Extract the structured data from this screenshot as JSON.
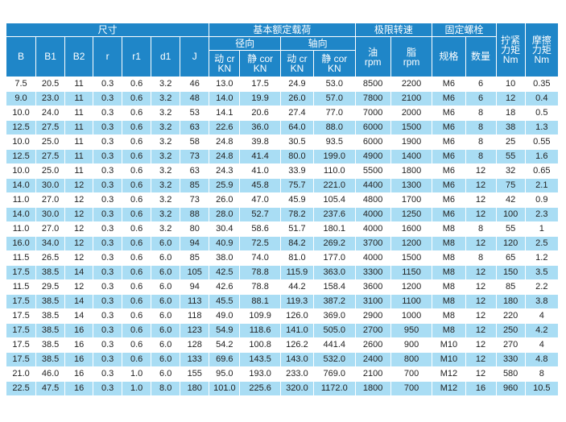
{
  "headers": {
    "dimensions_group": "尺寸",
    "load_group": "基本额定载荷",
    "speed_group": "极限转速",
    "bolt_group": "固定螺栓",
    "torque": [
      "拧紧",
      "力矩",
      "Nm"
    ],
    "friction": [
      "摩擦",
      "力矩",
      "Nm"
    ],
    "radial": "径向",
    "axial": "轴向",
    "dims": [
      "B",
      "B1",
      "B2",
      "r",
      "r1",
      "d1",
      "J"
    ],
    "radial_dynamic": [
      "动 cr",
      "KN"
    ],
    "radial_static": [
      "静 cor",
      "KN"
    ],
    "axial_dynamic": [
      "动 cr",
      "KN"
    ],
    "axial_static": [
      "静 cor",
      "KN"
    ],
    "oil": [
      "油",
      "rpm"
    ],
    "grease": [
      "脂",
      "rpm"
    ],
    "spec": "规格",
    "qty": "数量"
  },
  "rows": [
    [
      "7.5",
      "20.5",
      "11",
      "0.3",
      "0.6",
      "3.2",
      "46",
      "13.0",
      "17.5",
      "24.9",
      "53.0",
      "8500",
      "2200",
      "M6",
      "6",
      "10",
      "0.35"
    ],
    [
      "9.0",
      "23.0",
      "11",
      "0.3",
      "0.6",
      "3.2",
      "48",
      "14.0",
      "19.9",
      "26.0",
      "57.0",
      "7800",
      "2100",
      "M6",
      "6",
      "12",
      "0.4"
    ],
    [
      "10.0",
      "24.0",
      "11",
      "0.3",
      "0.6",
      "3.2",
      "53",
      "14.1",
      "20.6",
      "27.4",
      "77.0",
      "7000",
      "2000",
      "M6",
      "8",
      "18",
      "0.5"
    ],
    [
      "12.5",
      "27.5",
      "11",
      "0.3",
      "0.6",
      "3.2",
      "63",
      "22.6",
      "36.0",
      "64.0",
      "88.0",
      "6000",
      "1500",
      "M6",
      "8",
      "38",
      "1.3"
    ],
    [
      "10.0",
      "25.0",
      "11",
      "0.3",
      "0.6",
      "3.2",
      "58",
      "24.8",
      "39.8",
      "30.5",
      "93.5",
      "6000",
      "1900",
      "M6",
      "8",
      "25",
      "0.55"
    ],
    [
      "12.5",
      "27.5",
      "11",
      "0.3",
      "0.6",
      "3.2",
      "73",
      "24.8",
      "41.4",
      "80.0",
      "199.0",
      "4900",
      "1400",
      "M6",
      "8",
      "55",
      "1.6"
    ],
    [
      "10.0",
      "25.0",
      "11",
      "0.3",
      "0.6",
      "3.2",
      "63",
      "24.3",
      "41.0",
      "33.9",
      "110.0",
      "5500",
      "1800",
      "M6",
      "12",
      "32",
      "0.65"
    ],
    [
      "14.0",
      "30.0",
      "12",
      "0.3",
      "0.6",
      "3.2",
      "85",
      "25.9",
      "45.8",
      "75.7",
      "221.0",
      "4400",
      "1300",
      "M6",
      "12",
      "75",
      "2.1"
    ],
    [
      "11.0",
      "27.0",
      "12",
      "0.3",
      "0.6",
      "3.2",
      "73",
      "26.0",
      "47.0",
      "45.9",
      "105.4",
      "4800",
      "1700",
      "M6",
      "12",
      "42",
      "0.9"
    ],
    [
      "14.0",
      "30.0",
      "12",
      "0.3",
      "0.6",
      "3.2",
      "88",
      "28.0",
      "52.7",
      "78.2",
      "237.6",
      "4000",
      "1250",
      "M6",
      "12",
      "100",
      "2.3"
    ],
    [
      "11.0",
      "27.0",
      "12",
      "0.3",
      "0.6",
      "3.2",
      "80",
      "30.4",
      "58.6",
      "51.7",
      "180.1",
      "4000",
      "1600",
      "M8",
      "8",
      "55",
      "1"
    ],
    [
      "16.0",
      "34.0",
      "12",
      "0.3",
      "0.6",
      "6.0",
      "94",
      "40.9",
      "72.5",
      "84.2",
      "269.2",
      "3700",
      "1200",
      "M8",
      "12",
      "120",
      "2.5"
    ],
    [
      "11.5",
      "26.5",
      "12",
      "0.3",
      "0.6",
      "6.0",
      "85",
      "38.0",
      "74.0",
      "81.0",
      "177.0",
      "4000",
      "1500",
      "M8",
      "8",
      "65",
      "1.2"
    ],
    [
      "17.5",
      "38.5",
      "14",
      "0.3",
      "0.6",
      "6.0",
      "105",
      "42.5",
      "78.8",
      "115.9",
      "363.0",
      "3300",
      "1150",
      "M8",
      "12",
      "150",
      "3.5"
    ],
    [
      "11.5",
      "29.5",
      "12",
      "0.3",
      "0.6",
      "6.0",
      "94",
      "42.6",
      "78.8",
      "44.2",
      "158.4",
      "3600",
      "1200",
      "M8",
      "12",
      "85",
      "2.2"
    ],
    [
      "17.5",
      "38.5",
      "14",
      "0.3",
      "0.6",
      "6.0",
      "113",
      "45.5",
      "88.1",
      "119.3",
      "387.2",
      "3100",
      "1100",
      "M8",
      "12",
      "180",
      "3.8"
    ],
    [
      "17.5",
      "38.5",
      "14",
      "0.3",
      "0.6",
      "6.0",
      "118",
      "49.0",
      "109.9",
      "126.0",
      "369.0",
      "2900",
      "1000",
      "M8",
      "12",
      "220",
      "4"
    ],
    [
      "17.5",
      "38.5",
      "16",
      "0.3",
      "0.6",
      "6.0",
      "123",
      "54.9",
      "118.6",
      "141.0",
      "505.0",
      "2700",
      "950",
      "M8",
      "12",
      "250",
      "4.2"
    ],
    [
      "17.5",
      "38.5",
      "16",
      "0.3",
      "0.6",
      "6.0",
      "128",
      "54.2",
      "100.8",
      "126.2",
      "441.4",
      "2600",
      "900",
      "M10",
      "12",
      "270",
      "4"
    ],
    [
      "17.5",
      "38.5",
      "16",
      "0.3",
      "0.6",
      "6.0",
      "133",
      "69.6",
      "143.5",
      "143.0",
      "532.0",
      "2400",
      "800",
      "M10",
      "12",
      "330",
      "4.8"
    ],
    [
      "21.0",
      "46.0",
      "16",
      "0.3",
      "1.0",
      "6.0",
      "155",
      "95.0",
      "193.0",
      "233.0",
      "769.0",
      "2100",
      "700",
      "M12",
      "12",
      "580",
      "8"
    ],
    [
      "22.5",
      "47.5",
      "16",
      "0.3",
      "1.0",
      "8.0",
      "180",
      "101.0",
      "225.6",
      "320.0",
      "1172.0",
      "1800",
      "700",
      "M12",
      "16",
      "960",
      "10.5"
    ]
  ],
  "colors": {
    "header_bg": "#1f86c8",
    "stripe_bg": "#a9ddf4",
    "row_bg": "#ffffff"
  }
}
